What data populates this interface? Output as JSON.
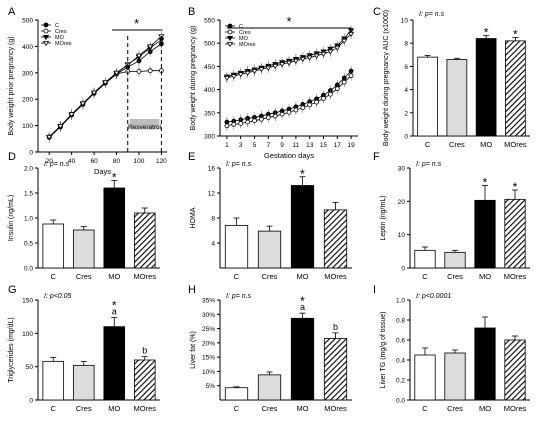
{
  "chart_data": [
    {
      "type": "line",
      "panel_letter": "A",
      "ylabel": "Body weight prior pregnancy (g)",
      "xlabel": "Days",
      "x": [
        20,
        30,
        40,
        50,
        60,
        70,
        80,
        90,
        100,
        110,
        120
      ],
      "xlim": [
        10,
        125
      ],
      "ylim": [
        0,
        500
      ],
      "xticks": [
        "20",
        "40",
        "60",
        "80",
        "100",
        "120"
      ],
      "yticks": [
        "0",
        "100",
        "200",
        "300",
        "400",
        "500"
      ],
      "series": [
        {
          "name": "C",
          "values": [
            55,
            95,
            140,
            180,
            222,
            260,
            295,
            322,
            345,
            380,
            410
          ]
        },
        {
          "name": "Cres",
          "values": [
            58,
            98,
            143,
            183,
            224,
            262,
            296,
            305,
            305,
            308,
            308
          ]
        },
        {
          "name": "MO",
          "values": [
            56,
            97,
            142,
            182,
            224,
            262,
            298,
            332,
            360,
            395,
            425
          ]
        },
        {
          "name": "MOres",
          "values": [
            57,
            98,
            143,
            184,
            225,
            264,
            300,
            330,
            365,
            400,
            438
          ]
        }
      ],
      "annotations": {
        "significance": "*",
        "treatment": "Resveratrol"
      }
    },
    {
      "type": "line",
      "panel_letter": "B",
      "ylabel": "Body weight during pregnancy (g)",
      "xlabel": "Gestation days",
      "x": [
        1,
        2,
        3,
        4,
        5,
        6,
        7,
        8,
        9,
        10,
        11,
        12,
        13,
        14,
        15,
        16,
        17,
        18,
        19
      ],
      "xlim": [
        0,
        20
      ],
      "ylim": [
        300,
        550
      ],
      "xticks": [
        "1",
        "3",
        "5",
        "7",
        "9",
        "11",
        "13",
        "15",
        "17",
        "19"
      ],
      "yticks": [
        "300",
        "350",
        "400",
        "450",
        "500",
        "550"
      ],
      "series": [
        {
          "name": "C",
          "values": [
            330,
            332,
            335,
            338,
            340,
            343,
            347,
            350,
            354,
            358,
            363,
            368,
            374,
            380,
            388,
            398,
            410,
            425,
            440
          ]
        },
        {
          "name": "Cres",
          "values": [
            322,
            325,
            327,
            330,
            333,
            336,
            340,
            343,
            347,
            351,
            356,
            361,
            367,
            373,
            381,
            390,
            402,
            416,
            430
          ]
        },
        {
          "name": "MO",
          "values": [
            428,
            432,
            436,
            440,
            443,
            447,
            451,
            455,
            459,
            462,
            466,
            470,
            474,
            478,
            482,
            488,
            495,
            510,
            528
          ]
        },
        {
          "name": "MOres",
          "values": [
            425,
            429,
            433,
            436,
            440,
            444,
            447,
            451,
            455,
            458,
            462,
            466,
            469,
            473,
            477,
            482,
            490,
            505,
            520
          ]
        }
      ],
      "annotations": {
        "significance": "*"
      }
    },
    {
      "type": "bar",
      "panel_letter": "C",
      "stat": "I: p= n.s",
      "ylabel": "Body weight during pregnancy AUC (x1000)",
      "categories": [
        "C",
        "Cres",
        "MO",
        "MOres"
      ],
      "values": [
        6.8,
        6.6,
        8.4,
        8.2
      ],
      "errors": [
        0.15,
        0.1,
        0.25,
        0.3
      ],
      "ylim": [
        0,
        10
      ],
      "yticks": [
        "0",
        "2",
        "4",
        "6",
        "8",
        "10"
      ],
      "labels": [
        "",
        "",
        "*",
        "*"
      ]
    },
    {
      "type": "bar",
      "panel_letter": "D",
      "stat": "I: p= n.s",
      "ylabel": "Insulin (ng/mL)",
      "categories": [
        "C",
        "Cres",
        "MO",
        "MOres"
      ],
      "values": [
        0.88,
        0.76,
        1.6,
        1.1
      ],
      "errors": [
        0.08,
        0.07,
        0.15,
        0.1
      ],
      "ylim": [
        0,
        2.0
      ],
      "yticks": [
        "0.0",
        "0.5",
        "1.0",
        "1.5",
        "2.0"
      ],
      "labels": [
        "",
        "",
        "*",
        ""
      ]
    },
    {
      "type": "bar",
      "panel_letter": "E",
      "stat": "I: p= n.s",
      "ylabel": "HOMA",
      "categories": [
        "C",
        "Cres",
        "MO",
        "MOres"
      ],
      "values": [
        6.8,
        5.9,
        13.2,
        9.3
      ],
      "errors": [
        1.2,
        0.8,
        1.4,
        1.2
      ],
      "ylim": [
        0,
        16
      ],
      "yticks": [
        "4",
        "8",
        "12",
        "16"
      ],
      "labels": [
        "",
        "",
        "*",
        ""
      ]
    },
    {
      "type": "bar",
      "panel_letter": "F",
      "stat": "I: p= n.s",
      "ylabel": "Leptin (ng/mL)",
      "categories": [
        "C",
        "Cres",
        "MO",
        "MOres"
      ],
      "values": [
        5.3,
        4.7,
        20.3,
        20.6
      ],
      "errors": [
        1.0,
        0.6,
        4.5,
        2.8
      ],
      "ylim": [
        0,
        30
      ],
      "yticks": [
        "0",
        "10",
        "20",
        "30"
      ],
      "labels": [
        "",
        "",
        "*",
        "*"
      ]
    },
    {
      "type": "bar",
      "panel_letter": "G",
      "stat": "I: p<0.05",
      "ylabel": "Triglycerides (mg/dL)",
      "categories": [
        "C",
        "Cres",
        "MO",
        "MOres"
      ],
      "values": [
        58,
        52,
        110,
        60
      ],
      "errors": [
        6,
        6,
        14,
        5
      ],
      "ylim": [
        0,
        150
      ],
      "yticks": [
        "0",
        "50",
        "100",
        "150"
      ],
      "labels": [
        "",
        "",
        "*\na",
        "b"
      ]
    },
    {
      "type": "bar",
      "panel_letter": "H",
      "stat": "I: p= n.s",
      "ylabel": "Liver fat (%)",
      "categories": [
        "C",
        "Cres",
        "MO",
        "MOres"
      ],
      "values": [
        4.3,
        8.8,
        28.6,
        21.5
      ],
      "errors": [
        0.3,
        1.0,
        1.8,
        2.0
      ],
      "ylim": [
        0,
        35
      ],
      "yticks": [
        "5%",
        "10%",
        "15%",
        "20%",
        "25%",
        "30%",
        "35%"
      ],
      "labels": [
        "",
        "",
        "*\na",
        "b"
      ]
    },
    {
      "type": "bar",
      "panel_letter": "I",
      "stat": "I: p<0.0001",
      "ylabel": "Liver TG (mg/g of tissue)",
      "categories": [
        "C",
        "Cres",
        "MO",
        "MOres"
      ],
      "values": [
        0.45,
        0.47,
        0.72,
        0.6
      ],
      "errors": [
        0.07,
        0.03,
        0.11,
        0.04
      ],
      "ylim": [
        0,
        1.0
      ],
      "yticks": [
        "0.0",
        "0.2",
        "0.4",
        "0.6",
        "0.8",
        "1.0"
      ],
      "labels": [
        "",
        "",
        "",
        ""
      ]
    }
  ],
  "colors": {
    "C": "#ffffff",
    "Cres": "#dcdcdc",
    "MO": "#000000",
    "MOres": "hatched"
  }
}
